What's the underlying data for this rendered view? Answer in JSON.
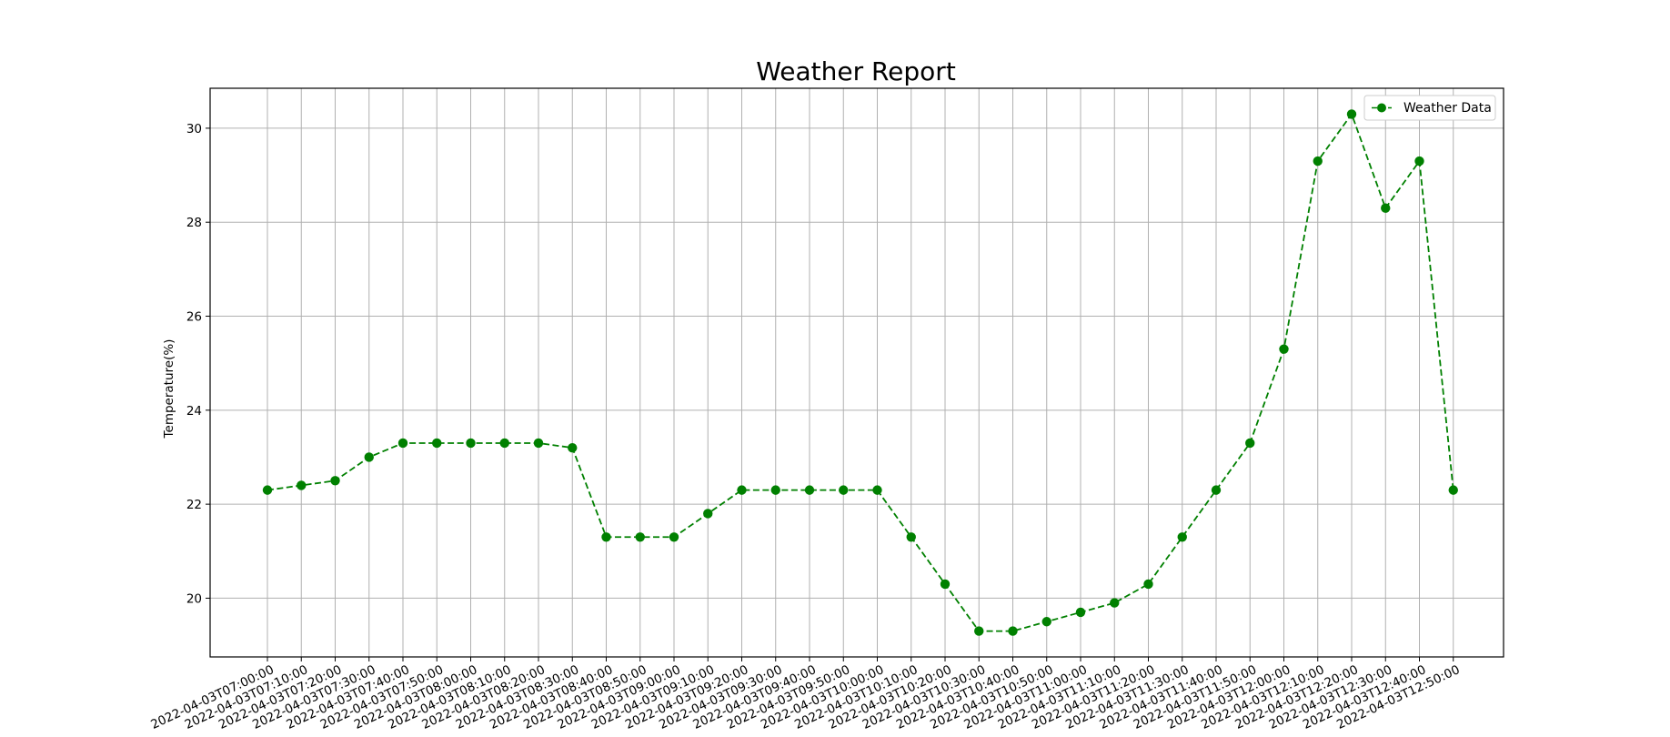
{
  "chart_data": {
    "type": "line",
    "title": "Weather Report",
    "xlabel": "",
    "ylabel": "Temperature(%)",
    "ylim": [
      18.75,
      30.85
    ],
    "yticks": [
      20,
      22,
      24,
      26,
      28,
      30
    ],
    "grid": true,
    "legend_position": "top-right",
    "line_style": "dashed",
    "marker": "circle",
    "color": "#008000",
    "x": [
      "2022-04-03T07:00:00",
      "2022-04-03T07:10:00",
      "2022-04-03T07:20:00",
      "2022-04-03T07:30:00",
      "2022-04-03T07:40:00",
      "2022-04-03T07:50:00",
      "2022-04-03T08:00:00",
      "2022-04-03T08:10:00",
      "2022-04-03T08:20:00",
      "2022-04-03T08:30:00",
      "2022-04-03T08:40:00",
      "2022-04-03T08:50:00",
      "2022-04-03T09:00:00",
      "2022-04-03T09:10:00",
      "2022-04-03T09:20:00",
      "2022-04-03T09:30:00",
      "2022-04-03T09:40:00",
      "2022-04-03T09:50:00",
      "2022-04-03T10:00:00",
      "2022-04-03T10:10:00",
      "2022-04-03T10:20:00",
      "2022-04-03T10:30:00",
      "2022-04-03T10:40:00",
      "2022-04-03T10:50:00",
      "2022-04-03T11:00:00",
      "2022-04-03T11:10:00",
      "2022-04-03T11:20:00",
      "2022-04-03T11:30:00",
      "2022-04-03T11:40:00",
      "2022-04-03T11:50:00",
      "2022-04-03T12:00:00",
      "2022-04-03T12:10:00",
      "2022-04-03T12:20:00",
      "2022-04-03T12:30:00",
      "2022-04-03T12:40:00",
      "2022-04-03T12:50:00"
    ],
    "series": [
      {
        "name": "Weather Data",
        "values": [
          22.3,
          22.4,
          22.5,
          23.0,
          23.3,
          23.3,
          23.3,
          23.3,
          23.3,
          23.2,
          21.3,
          21.3,
          21.3,
          21.8,
          22.3,
          22.3,
          22.3,
          22.3,
          22.3,
          21.3,
          20.3,
          19.3,
          19.3,
          19.5,
          19.7,
          19.9,
          20.3,
          21.3,
          22.3,
          23.3,
          25.3,
          29.3,
          30.3,
          28.3,
          29.3,
          22.3
        ]
      }
    ]
  }
}
